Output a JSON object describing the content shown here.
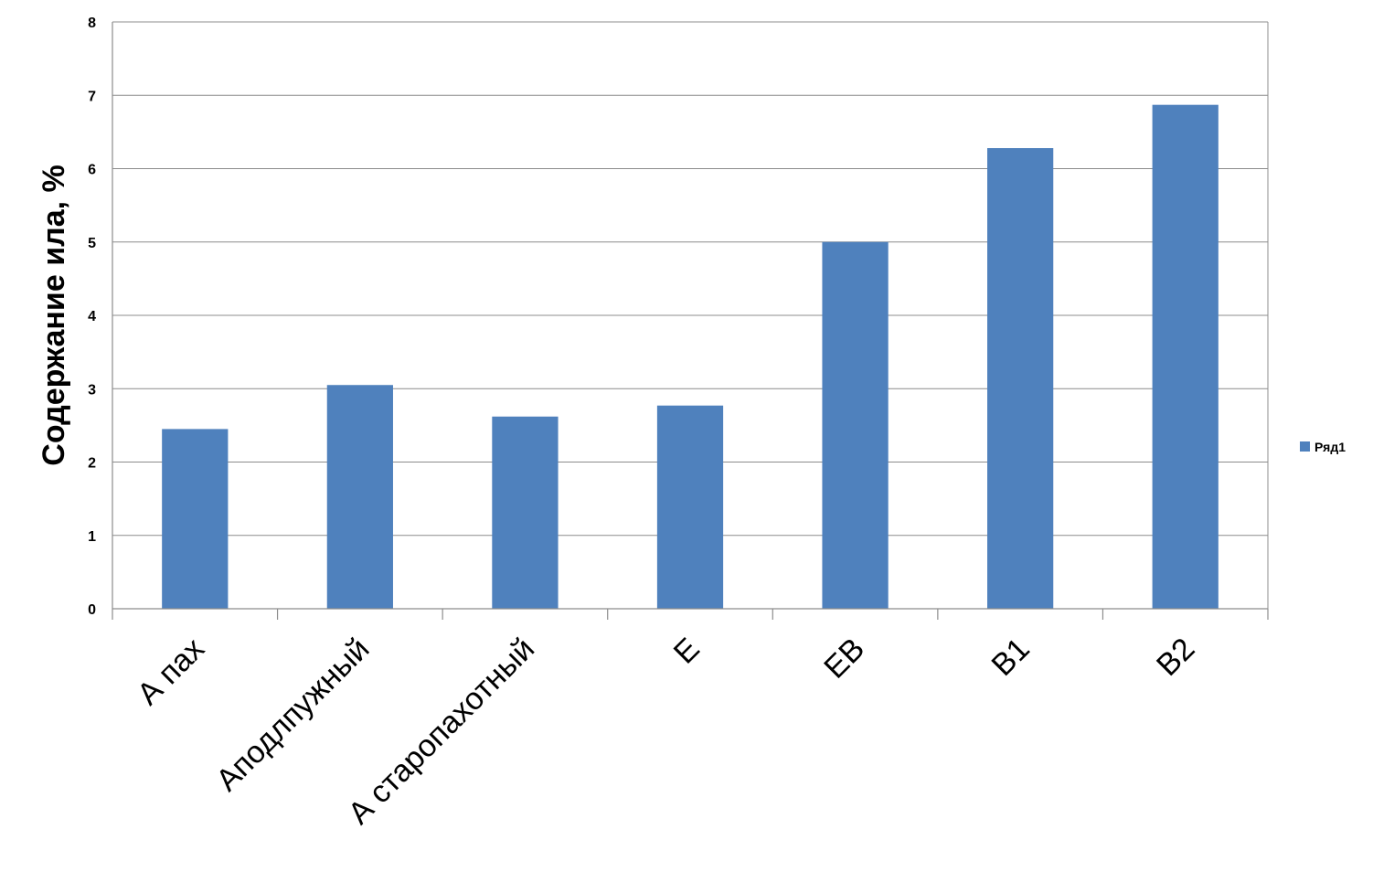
{
  "chart_data": {
    "type": "bar",
    "title": "",
    "xlabel": "",
    "ylabel": "Содержание ила, %",
    "categories": [
      "А пах",
      "Аподлпужный",
      "А старопахотный",
      "Е",
      "ЕВ",
      "В1",
      "В2"
    ],
    "series": [
      {
        "name": "Ряд1",
        "values": [
          2.45,
          3.05,
          2.62,
          2.77,
          5.0,
          6.28,
          6.87
        ],
        "color": "#4f81bd"
      }
    ],
    "ylim": [
      0,
      8
    ],
    "yticks": [
      "0",
      "1",
      "2",
      "3",
      "4",
      "5",
      "6",
      "7",
      "8"
    ],
    "grid": true,
    "legend_position": "right"
  }
}
